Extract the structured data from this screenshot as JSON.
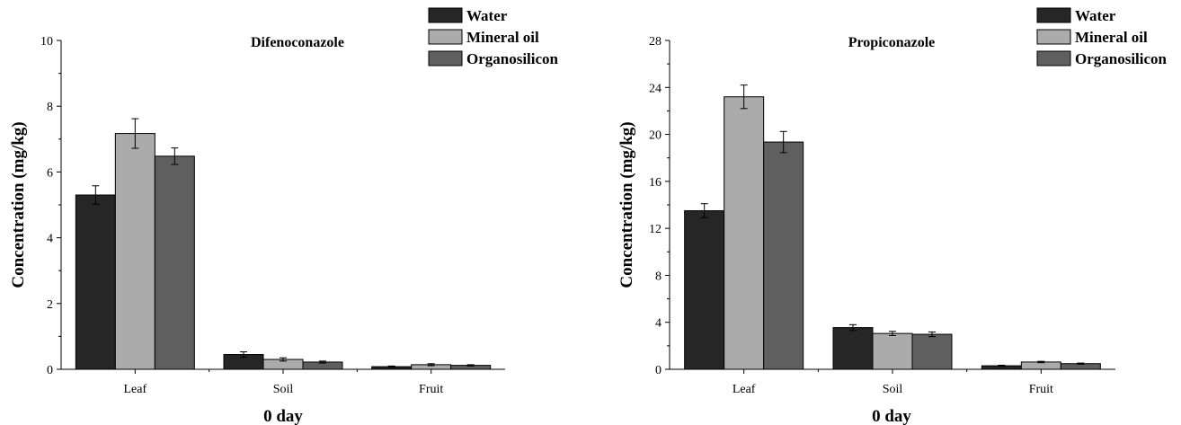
{
  "chart_data": [
    {
      "type": "bar",
      "title": "Difenoconazole",
      "xlabel": "0 day",
      "ylabel": "Concentration (mg/kg)",
      "categories": [
        "Leaf",
        "Soil",
        "Fruit"
      ],
      "ylim": [
        0,
        10
      ],
      "yticks": [
        0,
        2,
        4,
        6,
        8,
        10
      ],
      "legend_position": "top-right",
      "series": [
        {
          "name": "Water",
          "color": "#262626",
          "values": [
            5.3,
            0.45,
            0.08
          ],
          "errors": [
            0.28,
            0.08,
            0.02
          ]
        },
        {
          "name": "Mineral oil",
          "color": "#ababab",
          "values": [
            7.17,
            0.3,
            0.14
          ],
          "errors": [
            0.45,
            0.05,
            0.03
          ]
        },
        {
          "name": "Organosilicon",
          "color": "#5f5f5f",
          "values": [
            6.48,
            0.22,
            0.12
          ],
          "errors": [
            0.25,
            0.03,
            0.02
          ]
        }
      ]
    },
    {
      "type": "bar",
      "title": "Propiconazole",
      "xlabel": "0 day",
      "ylabel": "Concentration (mg/kg)",
      "categories": [
        "Leaf",
        "Soil",
        "Fruit"
      ],
      "ylim": [
        0,
        28
      ],
      "yticks": [
        0,
        4,
        8,
        12,
        16,
        20,
        24,
        28
      ],
      "legend_position": "top-right",
      "series": [
        {
          "name": "Water",
          "color": "#262626",
          "values": [
            13.5,
            3.55,
            0.3
          ],
          "errors": [
            0.6,
            0.25,
            0.05
          ]
        },
        {
          "name": "Mineral oil",
          "color": "#ababab",
          "values": [
            23.2,
            3.05,
            0.62
          ],
          "errors": [
            1.0,
            0.18,
            0.06
          ]
        },
        {
          "name": "Organosilicon",
          "color": "#5f5f5f",
          "values": [
            19.35,
            2.98,
            0.48
          ],
          "errors": [
            0.9,
            0.2,
            0.05
          ]
        }
      ]
    }
  ]
}
